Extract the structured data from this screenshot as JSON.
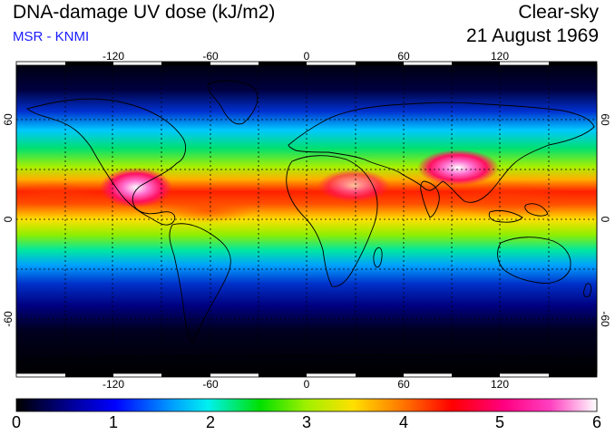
{
  "header": {
    "title": "DNA-damage UV dose (kJ/m2)",
    "subtitle": "MSR - KNMI",
    "condition": "Clear-sky",
    "date": "21 August 1969"
  },
  "map": {
    "lon_ticks": [
      "-120",
      "-60",
      "0",
      "60",
      "120"
    ],
    "lat_ticks": [
      "60",
      "0",
      "-60"
    ]
  },
  "colorbar": {
    "labels": [
      "0",
      "1",
      "2",
      "3",
      "4",
      "5",
      "6"
    ],
    "colors": [
      "#000000",
      "#0000c8",
      "#0090ff",
      "#00e8e8",
      "#00e000",
      "#c8f000",
      "#ffe000",
      "#ff7000",
      "#ff0000",
      "#ff0080",
      "#ff40c0",
      "#ffffff"
    ]
  }
}
